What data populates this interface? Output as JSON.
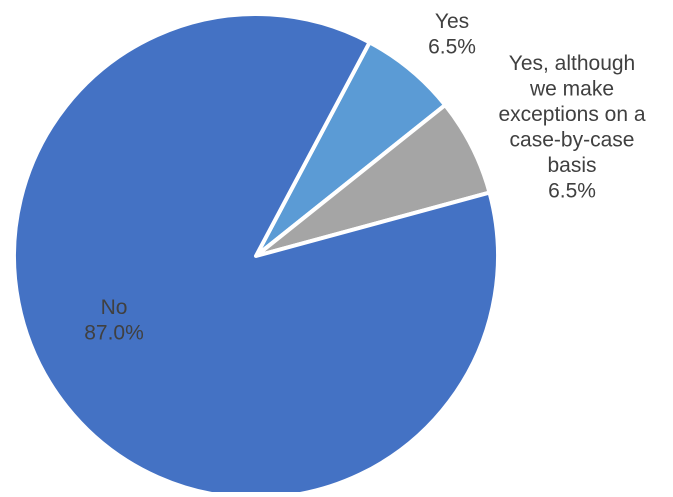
{
  "chart_data": {
    "type": "pie",
    "slices": [
      {
        "label": "Yes",
        "value": 6.5,
        "value_label": "6.5%",
        "color": "#5B9BD5"
      },
      {
        "label": "Yes, although we make exceptions on a case-by-case basis",
        "value": 6.5,
        "value_label": "6.5%",
        "color": "#A5A5A5"
      },
      {
        "label": "No",
        "value": 87.0,
        "value_label": "87.0%",
        "color": "#4472C4"
      }
    ],
    "label_lines": [
      [
        "Yes",
        "6.5%"
      ],
      [
        "Yes, although",
        "we make",
        "exceptions on a",
        "case-by-case",
        "basis",
        "6.5%"
      ],
      [
        "No",
        "87.0%"
      ]
    ],
    "slice_border_color": "#FFFFFF",
    "label_color": "#404040",
    "title": "",
    "legend": "none"
  }
}
